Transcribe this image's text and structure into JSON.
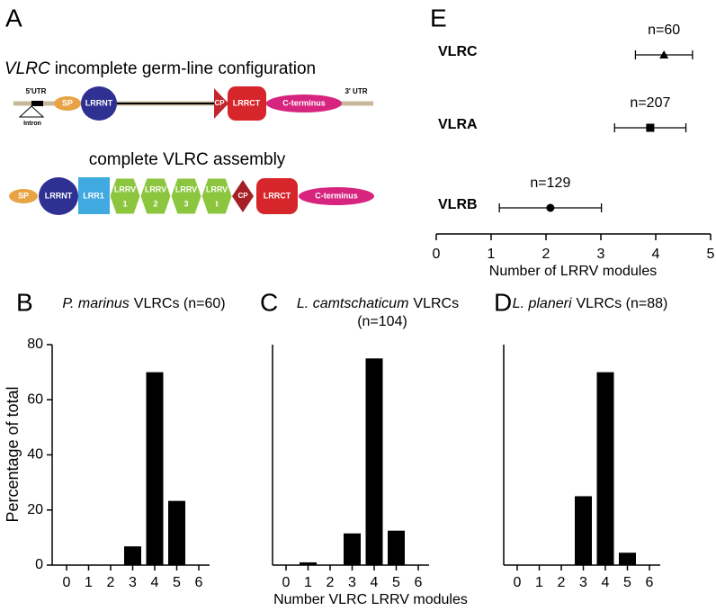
{
  "diagram": {
    "panel": "A",
    "title_italic": "VLRC",
    "title": "incomplete germ-line configuration",
    "utr5": "5'UTR",
    "utr3": "3' UTR",
    "intron": "Intron",
    "germline": [
      "SP",
      "LRRNT",
      "CP",
      "LRRCT",
      "C-terminus"
    ],
    "assembly_title": "complete VLRC assembly",
    "assembly": {
      "sp": "SP",
      "lrrnt": "LRRNT",
      "lrr1": "LRR1",
      "lrrv": [
        {
          "label": "LRRV",
          "sub": "1"
        },
        {
          "label": "LRRV",
          "sub": "2"
        },
        {
          "label": "LRRV",
          "sub": "3"
        },
        {
          "label": "LRRV",
          "sub": "t"
        }
      ],
      "cp": "CP",
      "lrrct": "LRRCT",
      "cterm": "C-terminus"
    }
  },
  "chart_data": [
    {
      "type": "bar",
      "panel": "B",
      "title_italic": "P. marinus",
      "title": "VLRCs (n=60)",
      "ylabel": "Percentage of total",
      "categories": [
        0,
        1,
        2,
        3,
        4,
        5,
        6
      ],
      "values": [
        0,
        0,
        0,
        6.8,
        70,
        23.3,
        0
      ],
      "color": "#000000",
      "ylim": [
        0,
        80
      ],
      "yticks": [
        0,
        20,
        40,
        60,
        80
      ]
    },
    {
      "type": "bar",
      "panel": "C",
      "title_italic": "L. camtschaticum",
      "title": "VLRCs",
      "title_line2": "(n=104)",
      "xlabel": "Number VLRC LRRV modules",
      "categories": [
        0,
        1,
        2,
        3,
        4,
        5,
        6
      ],
      "values": [
        0,
        1,
        0,
        11.5,
        75,
        12.5,
        0
      ],
      "color": "#000000",
      "ylim": [
        0,
        80
      ]
    },
    {
      "type": "bar",
      "panel": "D",
      "title_italic": "L. planeri",
      "title": "VLRCs (n=88)",
      "categories": [
        0,
        1,
        2,
        3,
        4,
        5,
        6
      ],
      "values": [
        0,
        0,
        0,
        25,
        70,
        4.5,
        0
      ],
      "color": "#000000",
      "ylim": [
        0,
        80
      ]
    },
    {
      "type": "errorbar",
      "panel": "E",
      "categories": [
        "VLRC",
        "VLRA",
        "VLRB"
      ],
      "values": [
        4.15,
        3.9,
        2.08
      ],
      "errors": [
        0.52,
        0.65,
        0.93
      ],
      "annotations": [
        "n=60",
        "n=207",
        "n=129"
      ],
      "markers": [
        "triangle",
        "square",
        "circle"
      ],
      "color": "#000000",
      "xlabel": "Number of LRRV modules",
      "xlim": [
        0,
        5
      ],
      "xticks": [
        0,
        1,
        2,
        3,
        4,
        5
      ]
    }
  ]
}
